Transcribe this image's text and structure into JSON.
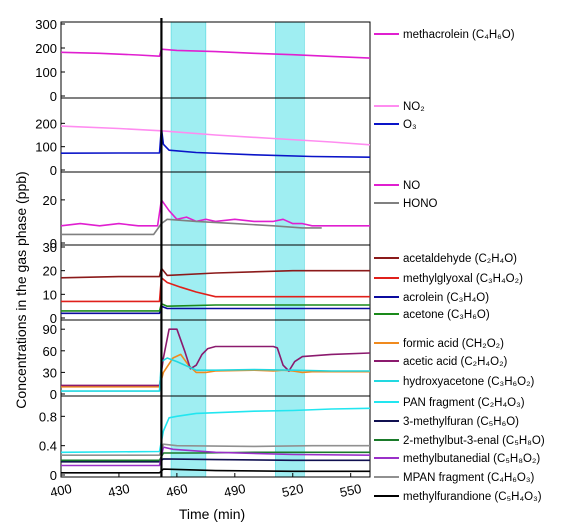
{
  "chart_data": {
    "type": "line",
    "ylabel": "Concentrations in the gas phase (ppb)",
    "xlabel": "Time (min)",
    "xlim": [
      400,
      560
    ],
    "xticks": [
      "400",
      "430",
      "460",
      "490",
      "520",
      "550"
    ],
    "xtick_values": [
      400,
      430,
      460,
      490,
      520,
      550
    ],
    "event_line_x": 452,
    "shaded_intervals": [
      [
        457,
        475
      ],
      [
        511,
        526
      ]
    ],
    "shade_color": "#7fe8ee",
    "panels": [
      {
        "ylim": [
          0,
          300
        ],
        "yticks": [
          0,
          100,
          200,
          300
        ],
        "series": [
          {
            "name": "methacrolein (C₄H₆O)",
            "color": "#e01fd0",
            "points": [
              [
                400,
                182
              ],
              [
                420,
                178
              ],
              [
                440,
                171
              ],
              [
                451,
                166
              ],
              [
                452,
                195
              ],
              [
                460,
                190
              ],
              [
                480,
                185
              ],
              [
                500,
                178
              ],
              [
                520,
                172
              ],
              [
                540,
                165
              ],
              [
                560,
                158
              ]
            ]
          }
        ]
      },
      {
        "ylim": [
          0,
          300
        ],
        "yticks": [
          0,
          100,
          200
        ],
        "series": [
          {
            "name": "NO₂",
            "color": "#ff8cf0",
            "points": [
              [
                400,
                188
              ],
              [
                430,
                178
              ],
              [
                452,
                168
              ],
              [
                480,
                150
              ],
              [
                510,
                135
              ],
              [
                540,
                120
              ],
              [
                560,
                108
              ]
            ]
          },
          {
            "name": "O₃",
            "color": "#0a14c8",
            "points": [
              [
                400,
                72
              ],
              [
                430,
                73
              ],
              [
                451,
                73
              ],
              [
                452,
                180
              ],
              [
                453,
                110
              ],
              [
                456,
                85
              ],
              [
                470,
                75
              ],
              [
                500,
                65
              ],
              [
                530,
                58
              ],
              [
                560,
                55
              ]
            ]
          }
        ]
      },
      {
        "ylim": [
          0,
          32
        ],
        "yticks": [
          0,
          20
        ],
        "series": [
          {
            "name": "NO",
            "color": "#e01fd0",
            "points": [
              [
                400,
                8
              ],
              [
                410,
                9
              ],
              [
                420,
                8
              ],
              [
                430,
                9
              ],
              [
                440,
                8
              ],
              [
                450,
                8
              ],
              [
                452,
                20
              ],
              [
                456,
                15
              ],
              [
                460,
                11
              ],
              [
                465,
                12
              ],
              [
                470,
                10
              ],
              [
                475,
                11
              ],
              [
                480,
                10
              ],
              [
                490,
                11
              ],
              [
                500,
                10
              ],
              [
                510,
                10
              ],
              [
                515,
                11
              ],
              [
                520,
                9
              ],
              [
                525,
                9
              ],
              [
                530,
                8
              ],
              [
                540,
                8
              ],
              [
                550,
                8
              ],
              [
                560,
                8
              ]
            ]
          },
          {
            "name": "HONO",
            "color": "#808080",
            "points": [
              [
                400,
                4
              ],
              [
                440,
                4
              ],
              [
                448,
                4
              ],
              [
                452,
                9
              ],
              [
                455,
                11
              ],
              [
                470,
                10
              ],
              [
                490,
                9
              ],
              [
                510,
                8
              ],
              [
                525,
                7
              ],
              [
                535,
                7
              ]
            ]
          }
        ]
      },
      {
        "ylim": [
          0,
          30
        ],
        "yticks": [
          0,
          10,
          20,
          30
        ],
        "series": [
          {
            "name": "acetaldehyde (C₂H₄O)",
            "color": "#8b1a1a",
            "points": [
              [
                400,
                17
              ],
              [
                430,
                17.5
              ],
              [
                451,
                17.5
              ],
              [
                452,
                21
              ],
              [
                455,
                18
              ],
              [
                480,
                19
              ],
              [
                520,
                20
              ],
              [
                560,
                20
              ]
            ]
          },
          {
            "name": "methylglyoxal (C₃H₄O₂)",
            "color": "#e0201b",
            "points": [
              [
                400,
                7
              ],
              [
                430,
                7
              ],
              [
                451,
                7
              ],
              [
                452,
                17
              ],
              [
                455,
                15
              ],
              [
                462,
                13
              ],
              [
                470,
                11
              ],
              [
                480,
                9
              ],
              [
                500,
                9
              ],
              [
                520,
                9
              ],
              [
                540,
                9
              ],
              [
                560,
                9
              ]
            ]
          },
          {
            "name": "acrolein (C₃H₄O)",
            "color": "#0b0b9e",
            "points": [
              [
                400,
                2
              ],
              [
                451,
                2
              ],
              [
                452,
                5
              ],
              [
                455,
                4
              ],
              [
                480,
                4
              ],
              [
                520,
                4
              ],
              [
                560,
                4
              ]
            ]
          },
          {
            "name": "acetone (C₃H₆O)",
            "color": "#1a8a1a",
            "points": [
              [
                400,
                3
              ],
              [
                451,
                3
              ],
              [
                452,
                6
              ],
              [
                455,
                5
              ],
              [
                480,
                5.5
              ],
              [
                520,
                5.5
              ],
              [
                560,
                5.5
              ]
            ]
          }
        ]
      },
      {
        "ylim": [
          0,
          100
        ],
        "yticks": [
          0,
          30,
          60,
          90
        ],
        "series": [
          {
            "name": "formic acid (CH₂O₂)",
            "color": "#f08a1e",
            "points": [
              [
                400,
                10
              ],
              [
                451,
                10
              ],
              [
                453,
                30
              ],
              [
                458,
                50
              ],
              [
                462,
                55
              ],
              [
                466,
                40
              ],
              [
                470,
                30
              ],
              [
                475,
                30
              ],
              [
                480,
                32
              ],
              [
                500,
                33
              ],
              [
                510,
                32
              ],
              [
                515,
                33
              ],
              [
                520,
                32
              ],
              [
                525,
                30
              ],
              [
                530,
                31
              ],
              [
                560,
                31
              ]
            ]
          },
          {
            "name": "acetic acid (C₂H₄O₂)",
            "color": "#8b1a6e",
            "points": [
              [
                400,
                12
              ],
              [
                451,
                12
              ],
              [
                453,
                50
              ],
              [
                456,
                90
              ],
              [
                460,
                90
              ],
              [
                464,
                60
              ],
              [
                467,
                35
              ],
              [
                470,
                40
              ],
              [
                473,
                55
              ],
              [
                476,
                63
              ],
              [
                480,
                66
              ],
              [
                500,
                66
              ],
              [
                510,
                66
              ],
              [
                512,
                64
              ],
              [
                515,
                40
              ],
              [
                518,
                32
              ],
              [
                521,
                45
              ],
              [
                525,
                52
              ],
              [
                540,
                55
              ],
              [
                560,
                57
              ]
            ]
          },
          {
            "name": "hydroxyacetone (C₃H₆O₂)",
            "color": "#22d8e0",
            "points": [
              [
                400,
                4
              ],
              [
                451,
                4
              ],
              [
                452,
                45
              ],
              [
                455,
                50
              ],
              [
                460,
                45
              ],
              [
                470,
                33
              ],
              [
                480,
                33
              ],
              [
                500,
                34
              ],
              [
                520,
                33
              ],
              [
                540,
                32
              ],
              [
                560,
                32
              ]
            ]
          }
        ]
      },
      {
        "ylim": [
          0,
          1.05
        ],
        "yticks": [
          0,
          0.4,
          0.8
        ],
        "series": [
          {
            "name": "PAN fragment (C₂H₄O₃)",
            "color": "#22e6f0",
            "points": [
              [
                400,
                0.31
              ],
              [
                451,
                0.32
              ],
              [
                453,
                0.6
              ],
              [
                456,
                0.78
              ],
              [
                460,
                0.8
              ],
              [
                470,
                0.84
              ],
              [
                480,
                0.85
              ],
              [
                500,
                0.87
              ],
              [
                520,
                0.88
              ],
              [
                540,
                0.9
              ],
              [
                560,
                0.91
              ]
            ]
          },
          {
            "name": "3-methylfuran (C₅H₆O)",
            "color": "#101050",
            "points": [
              [
                400,
                0.18
              ],
              [
                451,
                0.18
              ],
              [
                453,
                0.22
              ],
              [
                480,
                0.21
              ],
              [
                520,
                0.2
              ],
              [
                560,
                0.2
              ]
            ]
          },
          {
            "name": "2-methylbut-3-enal (C₅H₈O)",
            "color": "#1a7a2a",
            "points": [
              [
                400,
                0.2
              ],
              [
                451,
                0.2
              ],
              [
                453,
                0.3
              ],
              [
                470,
                0.3
              ],
              [
                500,
                0.31
              ],
              [
                560,
                0.31
              ]
            ]
          },
          {
            "name": "methylbutanedial (C₅H₈O₂)",
            "color": "#9a30c8",
            "points": [
              [
                400,
                0.13
              ],
              [
                451,
                0.13
              ],
              [
                453,
                0.38
              ],
              [
                458,
                0.35
              ],
              [
                480,
                0.31
              ],
              [
                520,
                0.28
              ],
              [
                560,
                0.27
              ]
            ]
          },
          {
            "name": "MPAN fragment (C₄H₆O₃)",
            "color": "#909090",
            "points": [
              [
                400,
                0.27
              ],
              [
                451,
                0.27
              ],
              [
                453,
                0.42
              ],
              [
                460,
                0.4
              ],
              [
                500,
                0.39
              ],
              [
                530,
                0.4
              ],
              [
                560,
                0.4
              ]
            ]
          },
          {
            "name": "methylfurandione (C₅H₄O₃)",
            "color": "#000000",
            "points": [
              [
                400,
                0.03
              ],
              [
                451,
                0.03
              ],
              [
                453,
                0.08
              ],
              [
                480,
                0.06
              ],
              [
                520,
                0.05
              ],
              [
                560,
                0.05
              ]
            ]
          }
        ]
      }
    ]
  }
}
